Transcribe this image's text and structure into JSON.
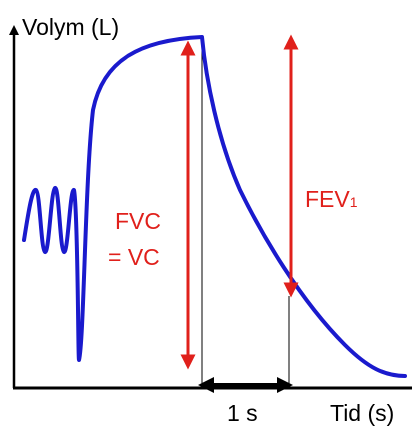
{
  "figure": {
    "y_axis_label": "Volym (L)",
    "x_axis_label": "Tid (s)",
    "time_interval_label": "1 s",
    "fvc_label_line1": "FVC",
    "fvc_label_line2": "= VC",
    "fev_label_main": "FEV",
    "fev_label_sub": "1"
  },
  "colors": {
    "curve": "#1a1acd",
    "annotation": "#e0201b",
    "axis": "#000000"
  }
}
